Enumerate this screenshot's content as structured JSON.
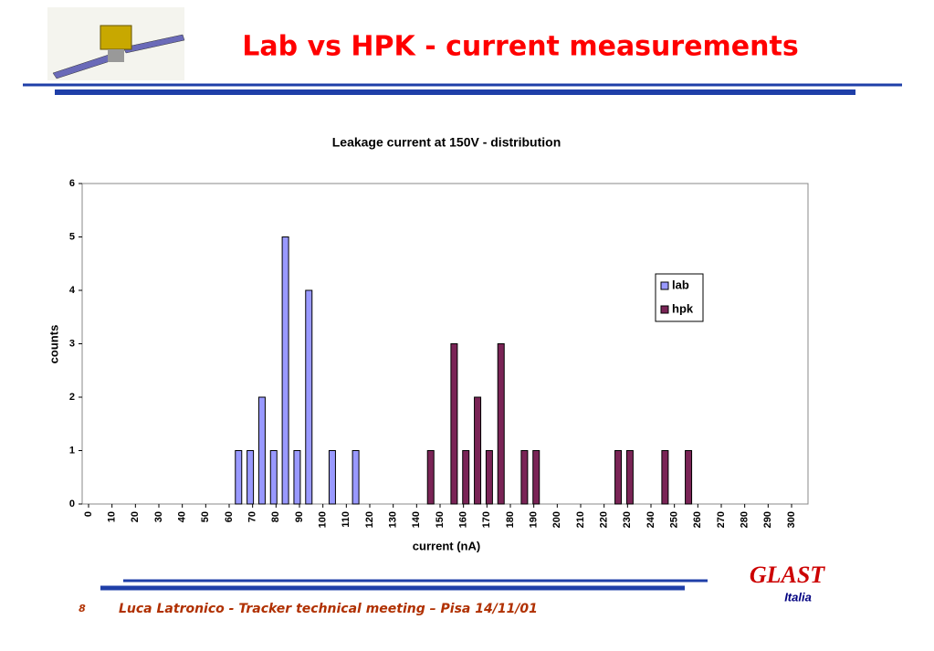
{
  "header": {
    "title": "Lab vs HPK - current measurements"
  },
  "chart_data": {
    "type": "bar",
    "title": "Leakage current at 150V - distribution",
    "x_label": "current (nA)",
    "y_label": "counts",
    "xlim": [
      0,
      300
    ],
    "xticks": [
      0,
      10,
      20,
      30,
      40,
      50,
      60,
      70,
      80,
      90,
      100,
      110,
      120,
      130,
      140,
      150,
      160,
      170,
      180,
      190,
      200,
      210,
      220,
      230,
      240,
      250,
      260,
      270,
      280,
      290,
      300
    ],
    "ylim": [
      0,
      6
    ],
    "yticks": [
      0,
      1,
      2,
      3,
      4,
      5,
      6
    ],
    "series": [
      {
        "name": "lab",
        "color": "#9999ff",
        "x": [
          64,
          69,
          74,
          79,
          84,
          89,
          94,
          104,
          114
        ],
        "values": [
          1,
          1,
          2,
          1,
          5,
          1,
          4,
          1,
          1
        ]
      },
      {
        "name": "hpk",
        "color": "#7a2456",
        "x": [
          146,
          156,
          161,
          166,
          171,
          176,
          186,
          191,
          226,
          231,
          246,
          256
        ],
        "values": [
          1,
          3,
          1,
          2,
          1,
          3,
          1,
          1,
          1,
          1,
          1,
          1
        ]
      }
    ]
  },
  "footer": {
    "page": "8",
    "text": "Luca Latronico - Tracker technical meeting – Pisa 14/11/01",
    "logo": "GLAST",
    "logo_sub": "Italia"
  }
}
